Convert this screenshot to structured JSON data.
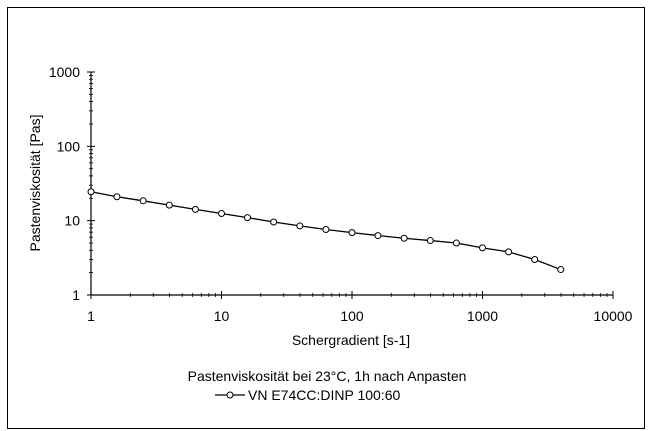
{
  "chart_data": {
    "type": "line",
    "title": "Pastenviskosität bei 23°C, 1h nach Anpasten",
    "xlabel": "Schergradient  [s-1]",
    "ylabel": "Pastenviskosität  [Pas]",
    "x_scale": "log",
    "y_scale": "log",
    "xlim": [
      1,
      10000
    ],
    "ylim": [
      1,
      1000
    ],
    "x_ticks": [
      "1",
      "10",
      "100",
      "1000",
      "10000"
    ],
    "y_ticks": [
      "1",
      "10",
      "100",
      "1000"
    ],
    "grid": false,
    "legend_position": "bottom",
    "series": [
      {
        "name": "VN E74CC:DINP  100:60",
        "color": "#000000",
        "marker": "open-circle",
        "x": [
          1,
          1.58,
          2.51,
          3.98,
          6.31,
          10,
          15.8,
          25.1,
          39.8,
          63.1,
          100,
          158,
          251,
          398,
          631,
          1000,
          1585,
          2512,
          3981
        ],
        "y": [
          24.5,
          21.0,
          18.5,
          16.2,
          14.2,
          12.5,
          11.0,
          9.6,
          8.5,
          7.6,
          6.9,
          6.3,
          5.8,
          5.4,
          5.0,
          4.3,
          3.8,
          3.0,
          2.2
        ]
      }
    ]
  }
}
